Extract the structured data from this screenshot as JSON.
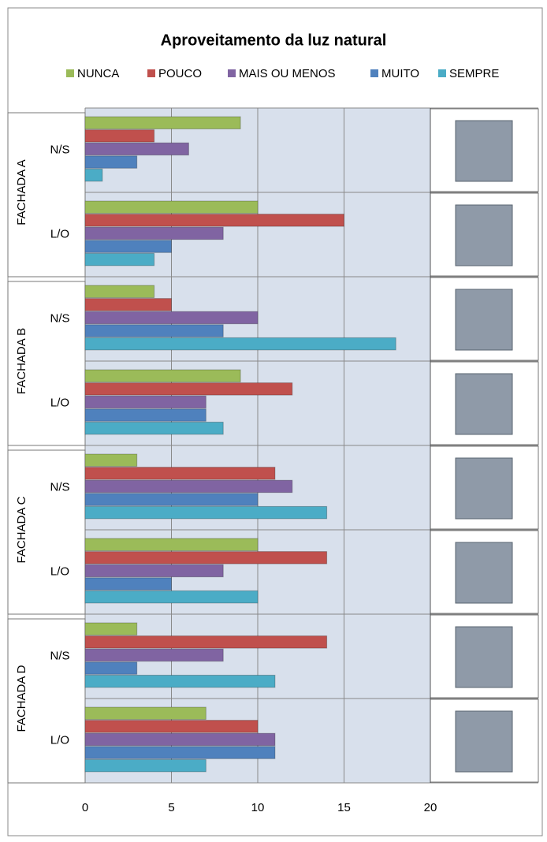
{
  "chart_data": {
    "type": "bar",
    "orientation": "horizontal",
    "title": "Aproveitamento da luz natural",
    "groups": [
      "FACHADA A",
      "FACHADA B",
      "FACHADA C",
      "FACHADA D"
    ],
    "categories": [
      "N/S",
      "L/O",
      "N/S",
      "L/O",
      "N/S",
      "L/O",
      "N/S",
      "L/O"
    ],
    "series": [
      {
        "name": "NUNCA",
        "color": "#9bbb59",
        "values": [
          9,
          10,
          4,
          9,
          3,
          10,
          3,
          7
        ]
      },
      {
        "name": "POUCO",
        "color": "#c0504d",
        "values": [
          4,
          15,
          5,
          12,
          11,
          14,
          14,
          10
        ]
      },
      {
        "name": "MAIS OU MENOS",
        "color": "#8064a2",
        "values": [
          6,
          8,
          10,
          7,
          12,
          8,
          8,
          11
        ]
      },
      {
        "name": "MUITO",
        "color": "#4f81bd",
        "values": [
          3,
          5,
          8,
          7,
          10,
          5,
          3,
          11
        ]
      },
      {
        "name": "SEMPRE",
        "color": "#4bacc6",
        "values": [
          1,
          4,
          18,
          8,
          14,
          10,
          11,
          7
        ]
      }
    ],
    "xlim": [
      0,
      20
    ],
    "xticks": [
      0,
      5,
      10,
      15,
      20
    ],
    "grid": true,
    "legend": "top"
  }
}
